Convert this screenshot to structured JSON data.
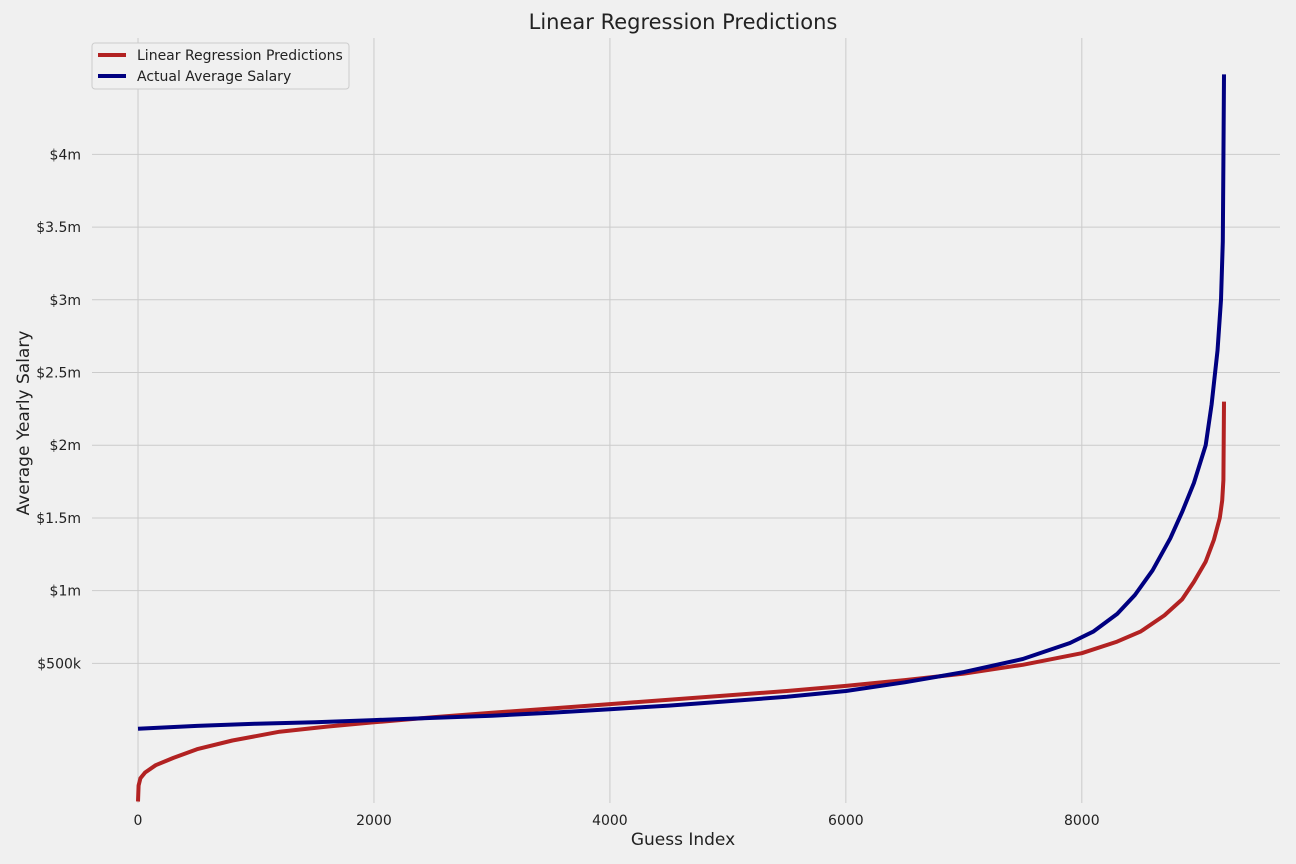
{
  "chart_data": {
    "type": "line",
    "title": "Linear Regression Predictions",
    "xlabel": "Guess Index",
    "ylabel": "Average Yearly Salary",
    "xlim": [
      -390,
      9680
    ],
    "ylim": [
      -460000,
      4800000
    ],
    "x_ticks": [
      {
        "value": 0,
        "label": "0"
      },
      {
        "value": 2000,
        "label": "2000"
      },
      {
        "value": 4000,
        "label": "4000"
      },
      {
        "value": 6000,
        "label": "6000"
      },
      {
        "value": 8000,
        "label": "8000"
      }
    ],
    "y_ticks": [
      {
        "value": 500000,
        "label": "$500k"
      },
      {
        "value": 1000000,
        "label": "$1m"
      },
      {
        "value": 1500000,
        "label": "$1.5m"
      },
      {
        "value": 2000000,
        "label": "$2m"
      },
      {
        "value": 2500000,
        "label": "$2.5m"
      },
      {
        "value": 3000000,
        "label": "$3m"
      },
      {
        "value": 3500000,
        "label": "$3.5m"
      },
      {
        "value": 4000000,
        "label": "$4m"
      }
    ],
    "grid": true,
    "legend_position": "top-left",
    "series": [
      {
        "name": "Linear Regression Predictions",
        "color": "#b22222",
        "points": [
          [
            0,
            -450000
          ],
          [
            5,
            -340000
          ],
          [
            20,
            -290000
          ],
          [
            60,
            -250000
          ],
          [
            150,
            -200000
          ],
          [
            300,
            -150000
          ],
          [
            500,
            -90000
          ],
          [
            800,
            -30000
          ],
          [
            1200,
            30000
          ],
          [
            1600,
            65000
          ],
          [
            2000,
            95000
          ],
          [
            2500,
            130000
          ],
          [
            3000,
            160000
          ],
          [
            3500,
            190000
          ],
          [
            4000,
            220000
          ],
          [
            4500,
            250000
          ],
          [
            5000,
            280000
          ],
          [
            5500,
            310000
          ],
          [
            6000,
            345000
          ],
          [
            6500,
            385000
          ],
          [
            7000,
            430000
          ],
          [
            7500,
            490000
          ],
          [
            8000,
            570000
          ],
          [
            8300,
            650000
          ],
          [
            8500,
            720000
          ],
          [
            8700,
            830000
          ],
          [
            8850,
            940000
          ],
          [
            8950,
            1060000
          ],
          [
            9050,
            1200000
          ],
          [
            9120,
            1350000
          ],
          [
            9170,
            1500000
          ],
          [
            9190,
            1620000
          ],
          [
            9200,
            1760000
          ],
          [
            9205,
            2300000
          ]
        ]
      },
      {
        "name": "Actual Average Salary",
        "color": "#000080",
        "points": [
          [
            0,
            50000
          ],
          [
            500,
            70000
          ],
          [
            1000,
            85000
          ],
          [
            1500,
            95000
          ],
          [
            2000,
            110000
          ],
          [
            2500,
            125000
          ],
          [
            3000,
            140000
          ],
          [
            3500,
            160000
          ],
          [
            4000,
            185000
          ],
          [
            4500,
            210000
          ],
          [
            5000,
            240000
          ],
          [
            5500,
            270000
          ],
          [
            6000,
            310000
          ],
          [
            6500,
            370000
          ],
          [
            7000,
            440000
          ],
          [
            7500,
            530000
          ],
          [
            7900,
            640000
          ],
          [
            8100,
            720000
          ],
          [
            8300,
            840000
          ],
          [
            8450,
            970000
          ],
          [
            8600,
            1140000
          ],
          [
            8750,
            1360000
          ],
          [
            8850,
            1540000
          ],
          [
            8950,
            1740000
          ],
          [
            9050,
            2000000
          ],
          [
            9100,
            2280000
          ],
          [
            9150,
            2650000
          ],
          [
            9180,
            3000000
          ],
          [
            9195,
            3400000
          ],
          [
            9200,
            3950000
          ],
          [
            9205,
            4550000
          ]
        ]
      }
    ]
  }
}
